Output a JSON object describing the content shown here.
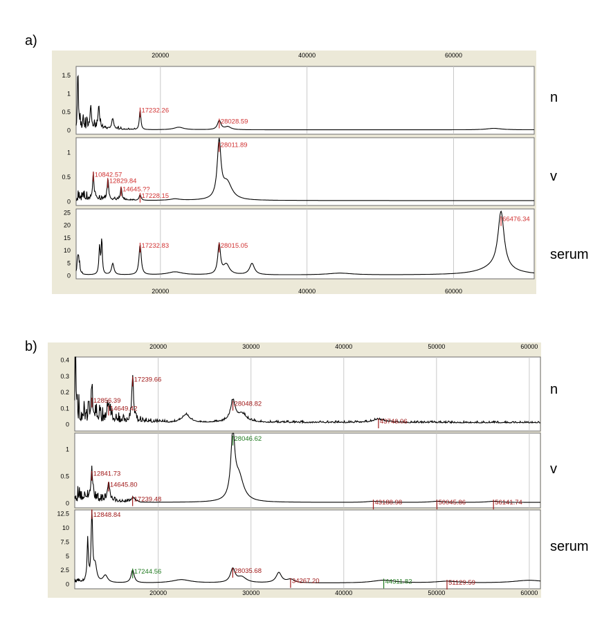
{
  "chart_data": [
    {
      "panel": "a)",
      "type": "line",
      "colors": {
        "background": "#ece9d8",
        "frame": "#6b6b6b",
        "grid": "#c8c8c8",
        "trace": "#000000",
        "peak": "#d03030"
      },
      "x_axis": {
        "ticks": [
          20000,
          40000,
          60000
        ],
        "xlim": [
          8500,
          71000
        ]
      },
      "grid": true,
      "traces": [
        {
          "name": "n",
          "ylim": [
            -0.1,
            1.75
          ],
          "yticks": [
            {
              "v": 0,
              "t": "0"
            },
            {
              "v": 0.5,
              "t": "0.5"
            },
            {
              "v": 1,
              "t": "1"
            },
            {
              "v": 1.5,
              "t": "1.5"
            }
          ],
          "baseline": 0.02,
          "noise": [
            {
              "a": 8600,
              "b": 16500,
              "amp": 0.55,
              "decay": 3000
            }
          ],
          "peaks": [
            [
              8750,
              1.55,
              70
            ],
            [
              10500,
              0.6,
              120
            ],
            [
              11600,
              0.65,
              110
            ],
            [
              13500,
              0.3,
              150
            ],
            [
              17232,
              0.55,
              120
            ],
            [
              22500,
              0.07,
              800
            ],
            [
              28028,
              0.25,
              280
            ],
            [
              29200,
              0.08,
              500
            ],
            [
              65500,
              0.04,
              1200
            ]
          ],
          "labels": [
            {
              "x": 17232,
              "y": 0.55,
              "text": "17232.26",
              "color": "#d03030"
            },
            {
              "x": 28028,
              "y": 0.25,
              "text": "28028.59",
              "color": "#d03030"
            }
          ]
        },
        {
          "name": "v",
          "ylim": [
            -0.08,
            1.3
          ],
          "yticks": [
            {
              "v": 0,
              "t": "0"
            },
            {
              "v": 0.5,
              "t": "0.5"
            },
            {
              "v": 1,
              "t": "1"
            }
          ],
          "baseline": 0.02,
          "noise": [
            {
              "a": 8600,
              "b": 16500,
              "amp": 0.3,
              "decay": 3000
            }
          ],
          "peaks": [
            [
              10842,
              0.55,
              110
            ],
            [
              12829,
              0.42,
              120
            ],
            [
              14645,
              0.25,
              130
            ],
            [
              17228,
              0.12,
              150
            ],
            [
              28011,
              1.15,
              300
            ],
            [
              29100,
              0.35,
              800
            ],
            [
              22000,
              0.03,
              800
            ]
          ],
          "labels": [
            {
              "x": 28011,
              "y": 1.15,
              "text": "28011.89",
              "color": "#d03030"
            },
            {
              "x": 10842,
              "y": 0.55,
              "text": "10842.57",
              "color": "#d03030"
            },
            {
              "x": 12829,
              "y": 0.42,
              "text": "12829.84",
              "color": "#d03030"
            },
            {
              "x": 14645,
              "y": 0.25,
              "text": "14645.??",
              "color": "#d03030"
            },
            {
              "x": 17228,
              "y": 0.12,
              "text": "17228.15",
              "color": "#d03030"
            }
          ]
        },
        {
          "name": "serum",
          "ylim": [
            -1.2,
            26.5
          ],
          "yticks": [
            {
              "v": 0,
              "t": "0"
            },
            {
              "v": 5,
              "t": "5"
            },
            {
              "v": 10,
              "t": "10"
            },
            {
              "v": 15,
              "t": "15"
            },
            {
              "v": 20,
              "t": "20"
            },
            {
              "v": 25,
              "t": "25"
            }
          ],
          "baseline": 0.3,
          "noise": [
            {
              "a": 8600,
              "b": 9400,
              "amp": 6,
              "decay": 500
            }
          ],
          "peaks": [
            [
              8800,
              8,
              150
            ],
            [
              11700,
              11,
              110
            ],
            [
              12000,
              14,
              90
            ],
            [
              13500,
              4.5,
              200
            ],
            [
              17232,
              12,
              180
            ],
            [
              22000,
              1.2,
              1200
            ],
            [
              28015,
              12,
              220
            ],
            [
              29000,
              4,
              500
            ],
            [
              32500,
              4.5,
              400
            ],
            [
              44500,
              0.7,
              2000
            ],
            [
              66476,
              22.5,
              500
            ],
            [
              65800,
              3,
              2500
            ]
          ],
          "labels": [
            {
              "x": 17232,
              "y": 12,
              "text": "17232.83",
              "color": "#d03030"
            },
            {
              "x": 28015,
              "y": 12,
              "text": "28015.05",
              "color": "#d03030"
            },
            {
              "x": 66476,
              "y": 22.5,
              "text": "66476.34",
              "color": "#d03030"
            }
          ]
        }
      ]
    },
    {
      "panel": "b)",
      "type": "line",
      "colors": {
        "background": "#ece9d8",
        "frame": "#6b6b6b",
        "grid": "#c8c8c8",
        "trace": "#000000",
        "peak": "#a01818",
        "peak_alt": "#1f7a1f"
      },
      "x_axis": {
        "ticks": [
          20000,
          30000,
          40000,
          50000,
          60000
        ],
        "xlim": [
          11000,
          61200
        ]
      },
      "grid": true,
      "traces": [
        {
          "name": "n",
          "ylim": [
            -0.04,
            0.42
          ],
          "yticks": [
            {
              "v": 0,
              "t": "0"
            },
            {
              "v": 0.1,
              "t": "0.1"
            },
            {
              "v": 0.2,
              "t": "0.2"
            },
            {
              "v": 0.3,
              "t": "0.3"
            },
            {
              "v": 0.4,
              "t": "0.4"
            }
          ],
          "baseline": 0.01,
          "noise": [
            {
              "a": 11000,
              "b": 26000,
              "amp": 0.22,
              "decay": 4000
            },
            {
              "a": 26000,
              "b": 61200,
              "amp": 0.015,
              "decay": 100000
            }
          ],
          "peaks": [
            [
              11100,
              0.35,
              60
            ],
            [
              12856,
              0.15,
              120
            ],
            [
              14649,
              0.1,
              150
            ],
            [
              17239,
              0.28,
              110
            ],
            [
              23000,
              0.05,
              500
            ],
            [
              28048,
              0.13,
              300
            ],
            [
              29000,
              0.05,
              600
            ],
            [
              43746,
              0.02,
              800
            ]
          ],
          "labels": [
            {
              "x": 17239,
              "y": 0.28,
              "text": "17239.66",
              "color": "#a01818"
            },
            {
              "x": 12856,
              "y": 0.15,
              "text": "12856.39",
              "color": "#a01818"
            },
            {
              "x": 14649,
              "y": 0.1,
              "text": "14649.42",
              "color": "#a01818"
            },
            {
              "x": 28048,
              "y": 0.13,
              "text": "28048.82",
              "color": "#a01818"
            },
            {
              "x": 43746,
              "y": 0.02,
              "text": "43746.06",
              "color": "#a01818"
            }
          ]
        },
        {
          "name": "v",
          "ylim": [
            -0.08,
            1.3
          ],
          "yticks": [
            {
              "v": 0,
              "t": "0"
            },
            {
              "v": 0.5,
              "t": "0.5"
            },
            {
              "v": 1,
              "t": "1"
            }
          ],
          "baseline": 0.02,
          "noise": [
            {
              "a": 11000,
              "b": 18000,
              "amp": 0.35,
              "decay": 3000
            }
          ],
          "peaks": [
            [
              12841,
              0.55,
              120
            ],
            [
              14645,
              0.35,
              150
            ],
            [
              17239,
              0.08,
              200
            ],
            [
              28046,
              1.2,
              250
            ],
            [
              28700,
              0.45,
              600
            ],
            [
              43188,
              0.02,
              800
            ],
            [
              50045,
              0.02,
              800
            ],
            [
              56141,
              0.02,
              800
            ]
          ],
          "labels": [
            {
              "x": 28046,
              "y": 1.2,
              "text": "28046.62",
              "color": "#1f7a1f"
            },
            {
              "x": 12841,
              "y": 0.55,
              "text": "12841.73",
              "color": "#a01818"
            },
            {
              "x": 14645,
              "y": 0.35,
              "text": "14645.80",
              "color": "#a01818"
            },
            {
              "x": 17239,
              "y": 0.08,
              "text": "17239.48",
              "color": "#a01818"
            },
            {
              "x": 43188,
              "y": 0.02,
              "text": "43188.98",
              "color": "#a01818"
            },
            {
              "x": 50045,
              "y": 0.02,
              "text": "50045.86",
              "color": "#a01818"
            },
            {
              "x": 56141,
              "y": 0.02,
              "text": "56141.74",
              "color": "#a01818"
            }
          ]
        },
        {
          "name": "serum",
          "ylim": [
            -0.8,
            13.2
          ],
          "yticks": [
            {
              "v": 0,
              "t": "0"
            },
            {
              "v": 2.5,
              "t": "2.5"
            },
            {
              "v": 5,
              "t": "5"
            },
            {
              "v": 7.5,
              "t": "7.5"
            },
            {
              "v": 10,
              "t": "10"
            },
            {
              "v": 12.5,
              "t": "12.5"
            }
          ],
          "baseline": 0.2,
          "noise": [
            {
              "a": 11000,
              "b": 13000,
              "amp": 1.5,
              "decay": 800
            }
          ],
          "peaks": [
            [
              12400,
              7.5,
              80
            ],
            [
              12848,
              12.8,
              90
            ],
            [
              13200,
              3,
              200
            ],
            [
              14300,
              1.3,
              300
            ],
            [
              17244,
              2.3,
              200
            ],
            [
              22500,
              0.6,
              1200
            ],
            [
              28035,
              2.4,
              300
            ],
            [
              29000,
              1,
              600
            ],
            [
              33000,
              1.8,
              350
            ],
            [
              34267,
              0.6,
              500
            ],
            [
              44311,
              0.5,
              1500
            ],
            [
              51129,
              0.3,
              1500
            ],
            [
              60000,
              0.5,
              2000
            ]
          ],
          "labels": [
            {
              "x": 12848,
              "y": 12.8,
              "text": "12848.84",
              "color": "#a01818"
            },
            {
              "x": 17244,
              "y": 2.3,
              "text": "17244.56",
              "color": "#1f7a1f"
            },
            {
              "x": 28035,
              "y": 2.4,
              "text": "28035.68",
              "color": "#a01818"
            },
            {
              "x": 34267,
              "y": 0.6,
              "text": "34267.20",
              "color": "#a01818"
            },
            {
              "x": 44311,
              "y": 0.5,
              "text": "44311.82",
              "color": "#1f7a1f"
            },
            {
              "x": 51129,
              "y": 0.3,
              "text": "51129.59",
              "color": "#a01818"
            }
          ]
        }
      ]
    }
  ]
}
